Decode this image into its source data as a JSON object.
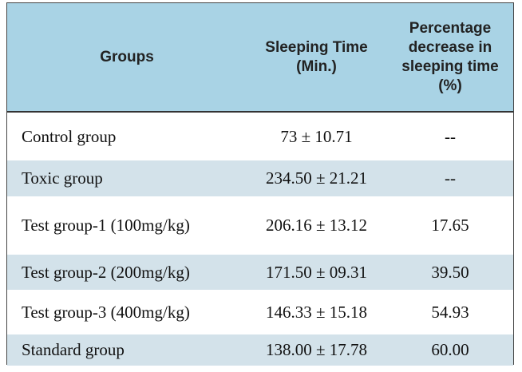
{
  "table": {
    "header": [
      "Groups",
      [
        "Sleeping Time",
        "(Min.)"
      ],
      [
        "Percentage",
        "decrease in",
        "sleeping time",
        "(%)"
      ]
    ],
    "rows": [
      [
        "Control group",
        "73 ± 10.71",
        "--"
      ],
      [
        "Toxic group",
        "234.50 ± 21.21",
        "--"
      ],
      [
        "Test group-1 (100mg/kg)",
        "206.16 ± 13.12",
        "17.65"
      ],
      [
        "Test group-2 (200mg/kg)",
        "171.50 ± 09.31",
        "39.50"
      ],
      [
        "Test group-3 (400mg/kg)",
        "146.33 ± 15.18",
        "54.93"
      ],
      [
        "Standard group",
        "138.00 ± 17.78",
        "60.00"
      ]
    ]
  }
}
